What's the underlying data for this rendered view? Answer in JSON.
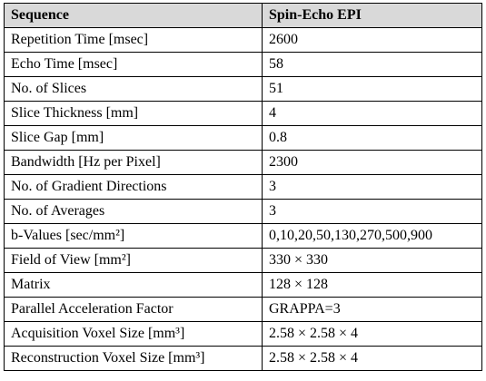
{
  "table": {
    "header": [
      "Sequence",
      "Spin-Echo EPI"
    ],
    "rows": [
      [
        "Repetition Time [msec]",
        "2600"
      ],
      [
        "Echo Time [msec]",
        "58"
      ],
      [
        "No. of Slices",
        "51"
      ],
      [
        "Slice Thickness [mm]",
        "4"
      ],
      [
        "Slice Gap [mm]",
        "0.8"
      ],
      [
        "Bandwidth [Hz per Pixel]",
        "2300"
      ],
      [
        "No. of Gradient Directions",
        "3"
      ],
      [
        "No. of Averages",
        "3"
      ],
      [
        "b-Values [sec/mm²]",
        "0,10,20,50,130,270,500,900"
      ],
      [
        "Field of View [mm²]",
        "330 × 330"
      ],
      [
        "Matrix",
        "128 × 128"
      ],
      [
        "Parallel Acceleration Factor",
        "GRAPPA=3"
      ],
      [
        "Acquisition Voxel Size [mm³]",
        "2.58 × 2.58 × 4"
      ],
      [
        "Reconstruction Voxel Size [mm³]",
        "2.58 × 2.58 × 4"
      ]
    ]
  }
}
